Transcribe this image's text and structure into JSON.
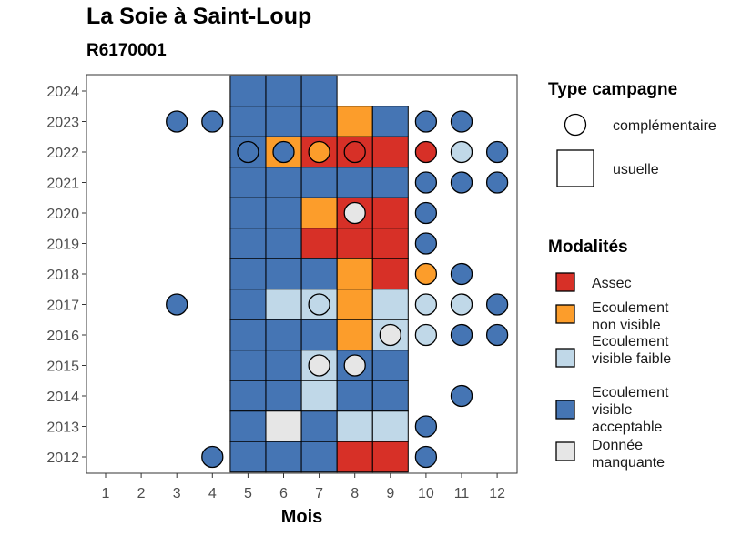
{
  "title": "La Soie à Saint-Loup",
  "subtitle": "R6170001",
  "legend": {
    "type_title": "Type campagne",
    "type_items": [
      {
        "key": "complementaire",
        "label": "complémentaire",
        "shape": "circle"
      },
      {
        "key": "usuelle",
        "label": "usuelle",
        "shape": "square"
      }
    ],
    "mod_title": "Modalités",
    "mod_items": [
      {
        "key": "A",
        "label": "Assec",
        "color": "#d73027"
      },
      {
        "key": "N",
        "label": "Ecoulement non visible",
        "color": "#fc9d2b"
      },
      {
        "key": "F",
        "label": "Ecoulement visible faible",
        "color": "#c0d8e8"
      },
      {
        "key": "V",
        "label": "Ecoulement visible acceptable",
        "color": "#4575b4"
      },
      {
        "key": "M",
        "label": "Donnée manquante",
        "color": "#e6e6e6"
      }
    ]
  },
  "chart_data": {
    "type": "heatmap",
    "xlabel": "Mois",
    "ylabel": "",
    "x_ticks": [
      "1",
      "2",
      "3",
      "4",
      "5",
      "6",
      "7",
      "8",
      "9",
      "10",
      "11",
      "12"
    ],
    "y_ticks": [
      "2012",
      "2013",
      "2014",
      "2015",
      "2016",
      "2017",
      "2018",
      "2019",
      "2020",
      "2021",
      "2022",
      "2023",
      "2024"
    ],
    "xlim": [
      0.5,
      12.5
    ],
    "ylim": [
      2011.5,
      2024.5
    ],
    "usuelle": [
      {
        "year": 2024,
        "months": [
          "V",
          "V",
          "V"
        ]
      },
      {
        "year": 2023,
        "months": [
          "V",
          "V",
          "V",
          "N",
          "V"
        ]
      },
      {
        "year": 2022,
        "months": [
          "V",
          "N",
          "A",
          "A",
          "A"
        ]
      },
      {
        "year": 2021,
        "months": [
          "V",
          "V",
          "V",
          "V",
          "V"
        ]
      },
      {
        "year": 2020,
        "months": [
          "V",
          "V",
          "N",
          "A",
          "A"
        ]
      },
      {
        "year": 2019,
        "months": [
          "V",
          "V",
          "A",
          "A",
          "A"
        ]
      },
      {
        "year": 2018,
        "months": [
          "V",
          "V",
          "V",
          "N",
          "A"
        ]
      },
      {
        "year": 2017,
        "months": [
          "V",
          "F",
          "F",
          "N",
          "F"
        ]
      },
      {
        "year": 2016,
        "months": [
          "V",
          "V",
          "V",
          "N",
          "F"
        ]
      },
      {
        "year": 2015,
        "months": [
          "V",
          "V",
          "F",
          "V",
          "V"
        ]
      },
      {
        "year": 2014,
        "months": [
          "V",
          "V",
          "F",
          "V",
          "V"
        ]
      },
      {
        "year": 2013,
        "months": [
          "V",
          "M",
          "V",
          "F",
          "F"
        ]
      },
      {
        "year": 2012,
        "months": [
          "V",
          "V",
          "V",
          "A",
          "A"
        ]
      }
    ],
    "complementaire": [
      {
        "year": 2023,
        "month": 3,
        "value": "V"
      },
      {
        "year": 2023,
        "month": 4,
        "value": "V"
      },
      {
        "year": 2023,
        "month": 10,
        "value": "V"
      },
      {
        "year": 2023,
        "month": 11,
        "value": "V"
      },
      {
        "year": 2022,
        "month": 5,
        "value": "V"
      },
      {
        "year": 2022,
        "month": 6,
        "value": "V"
      },
      {
        "year": 2022,
        "month": 7,
        "value": "N"
      },
      {
        "year": 2022,
        "month": 8,
        "value": "A"
      },
      {
        "year": 2022,
        "month": 10,
        "value": "A"
      },
      {
        "year": 2022,
        "month": 11,
        "value": "F"
      },
      {
        "year": 2022,
        "month": 12,
        "value": "V"
      },
      {
        "year": 2021,
        "month": 10,
        "value": "V"
      },
      {
        "year": 2021,
        "month": 11,
        "value": "V"
      },
      {
        "year": 2021,
        "month": 12,
        "value": "V"
      },
      {
        "year": 2020,
        "month": 8,
        "value": "M"
      },
      {
        "year": 2020,
        "month": 10,
        "value": "V"
      },
      {
        "year": 2019,
        "month": 10,
        "value": "V"
      },
      {
        "year": 2018,
        "month": 10,
        "value": "N"
      },
      {
        "year": 2018,
        "month": 11,
        "value": "V"
      },
      {
        "year": 2017,
        "month": 3,
        "value": "V"
      },
      {
        "year": 2017,
        "month": 7,
        "value": "F"
      },
      {
        "year": 2017,
        "month": 10,
        "value": "F"
      },
      {
        "year": 2017,
        "month": 11,
        "value": "F"
      },
      {
        "year": 2017,
        "month": 12,
        "value": "V"
      },
      {
        "year": 2016,
        "month": 9,
        "value": "M"
      },
      {
        "year": 2016,
        "month": 10,
        "value": "F"
      },
      {
        "year": 2016,
        "month": 11,
        "value": "V"
      },
      {
        "year": 2016,
        "month": 12,
        "value": "V"
      },
      {
        "year": 2015,
        "month": 7,
        "value": "M"
      },
      {
        "year": 2015,
        "month": 8,
        "value": "M"
      },
      {
        "year": 2014,
        "month": 11,
        "value": "V"
      },
      {
        "year": 2013,
        "month": 10,
        "value": "V"
      },
      {
        "year": 2012,
        "month": 4,
        "value": "V"
      },
      {
        "year": 2012,
        "month": 10,
        "value": "V"
      }
    ],
    "grid": false
  }
}
